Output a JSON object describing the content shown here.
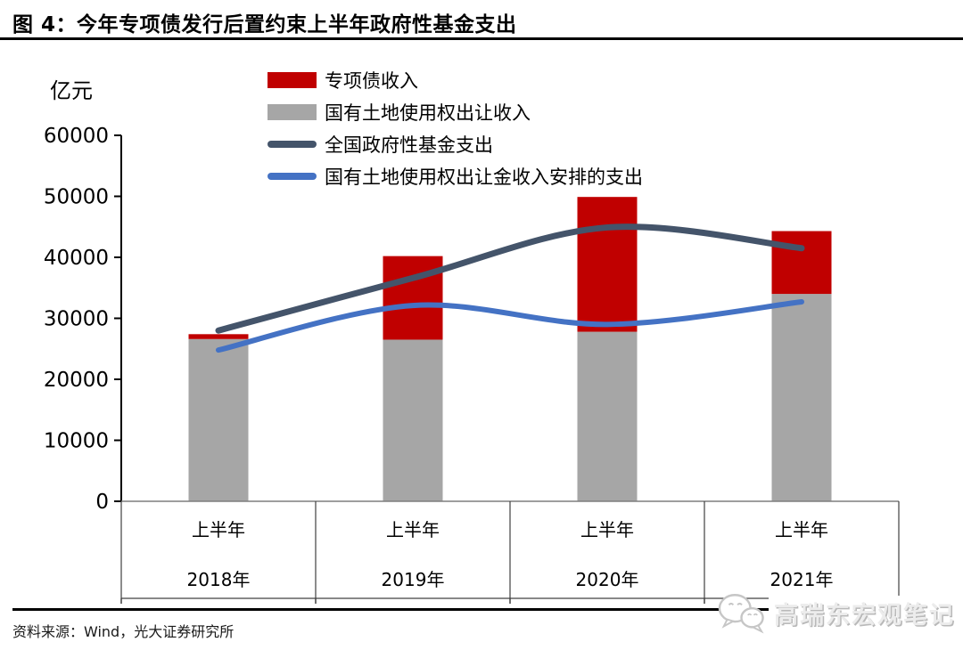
{
  "figure": {
    "title": "图 4：今年专项债发行后置约束上半年政府性基金支出",
    "source": "资料来源：Wind，光大证券研究所",
    "watermark": "高瑞东宏观笔记",
    "watermark_icon": "wechat-icon"
  },
  "colors": {
    "special_bond_red": "#C00000",
    "land_revenue_gray": "#A6A6A6",
    "fund_expenditure_dark": "#44546A",
    "land_expenditure_blue": "#4472C4",
    "axis_black": "#000000",
    "baseline_gray": "#7f7f7f",
    "box_line": "#404040"
  },
  "chart_data": {
    "type": "combo_stacked_bar_line",
    "unit_label": "亿元",
    "categories": [
      {
        "period": "上半年",
        "year": "2018年"
      },
      {
        "period": "上半年",
        "year": "2019年"
      },
      {
        "period": "上半年",
        "year": "2020年"
      },
      {
        "period": "上半年",
        "year": "2021年"
      }
    ],
    "y_axis": {
      "min": 0,
      "max": 60000,
      "step": 10000,
      "ticks": [
        0,
        10000,
        20000,
        30000,
        40000,
        50000,
        60000
      ]
    },
    "bar_series": [
      {
        "name": "专项债收入",
        "color": "#C00000",
        "stack": "top",
        "values": [
          800,
          13700,
          22100,
          10300
        ]
      },
      {
        "name": "国有土地使用权出让收入",
        "color": "#A6A6A6",
        "stack": "bottom",
        "values": [
          26600,
          26500,
          27800,
          34000
        ]
      }
    ],
    "bar_totals": [
      27400,
      40200,
      49900,
      44300
    ],
    "line_series": [
      {
        "name": "全国政府性基金支出",
        "color": "#44546A",
        "stroke_width": 7,
        "values": [
          28000,
          36600,
          44900,
          41500
        ]
      },
      {
        "name": "国有土地使用权出让金收入安排的支出",
        "color": "#4472C4",
        "stroke_width": 6,
        "values": [
          24800,
          32100,
          29000,
          32700
        ]
      }
    ],
    "legend_position": "top-center",
    "grid": false
  }
}
